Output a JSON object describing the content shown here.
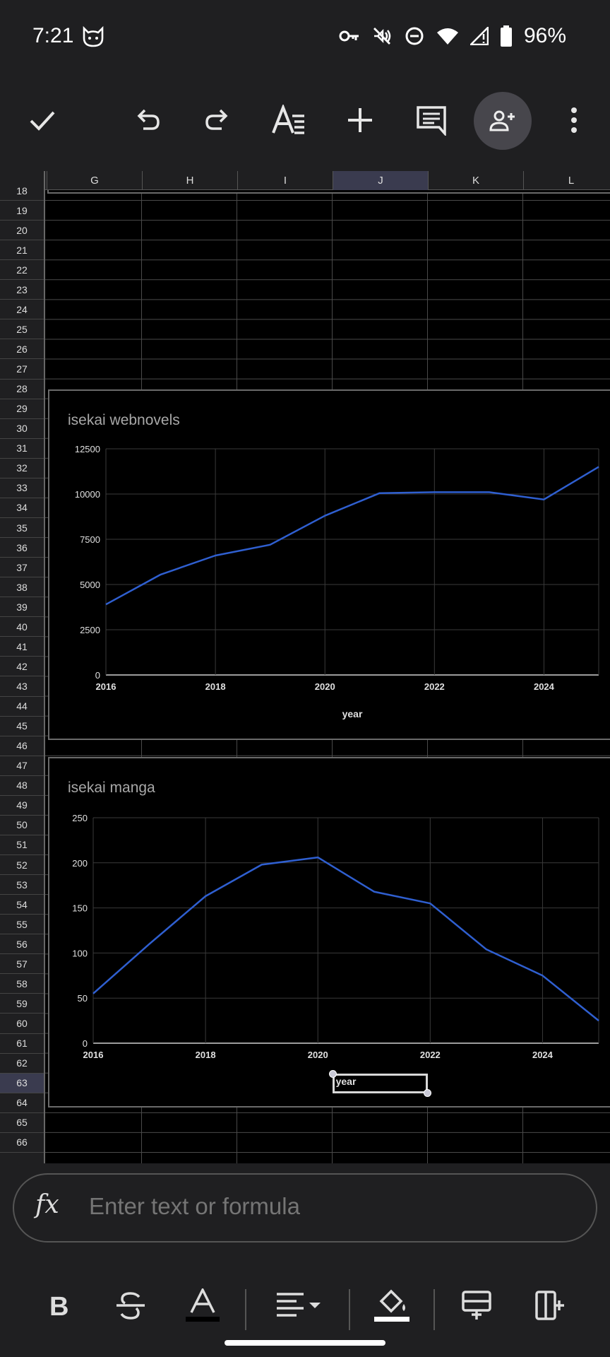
{
  "status_bar": {
    "time": "7:21",
    "battery": "96%",
    "icons": [
      "cat-icon",
      "vpn-key-icon",
      "vibrate-off-icon",
      "do-not-disturb-icon",
      "wifi-icon",
      "signal-icon",
      "battery-icon"
    ]
  },
  "toolbar": {
    "buttons": [
      "check-icon",
      "undo-icon",
      "redo-icon",
      "text-format-icon",
      "add-icon",
      "comment-icon",
      "share-person-add-icon",
      "more-vert-icon"
    ]
  },
  "sheet": {
    "columns": [
      "G",
      "H",
      "I",
      "J",
      "K",
      "L"
    ],
    "selected_column": "J",
    "rows": [
      18,
      19,
      20,
      21,
      22,
      23,
      24,
      25,
      26,
      27,
      28,
      29,
      30,
      31,
      32,
      33,
      34,
      35,
      36,
      37,
      38,
      39,
      40,
      41,
      42,
      43,
      44,
      45,
      46,
      47,
      48,
      49,
      50,
      51,
      52,
      53,
      54,
      55,
      56,
      57,
      58,
      59,
      60,
      61,
      62,
      63,
      64,
      65,
      66
    ],
    "selected_row": 63,
    "selected_cell": "J63"
  },
  "chart_data": [
    {
      "type": "line",
      "title": "isekai webnovels",
      "xlabel": "year",
      "ylabel": "",
      "x": [
        2016,
        2017,
        2018,
        2019,
        2020,
        2021,
        2022,
        2023,
        2024,
        2025
      ],
      "series": [
        {
          "values": [
            3900,
            5550,
            6600,
            7200,
            8800,
            10050,
            10100,
            10100,
            9700,
            11500
          ],
          "color": "#2f5fd0"
        }
      ],
      "xlim": [
        2016,
        2025
      ],
      "ylim": [
        0,
        12500
      ],
      "xticks": [
        "2016",
        "2018",
        "2020",
        "2022",
        "2024"
      ],
      "yticks": [
        "0",
        "2500",
        "5000",
        "7500",
        "10000",
        "12500"
      ],
      "grid": true,
      "legend": "none"
    },
    {
      "type": "line",
      "title": "isekai manga",
      "xlabel": "year",
      "ylabel": "",
      "x": [
        2016,
        2017,
        2018,
        2019,
        2020,
        2021,
        2022,
        2023,
        2024,
        2025
      ],
      "series": [
        {
          "values": [
            55,
            110,
            163,
            198,
            206,
            168,
            155,
            104,
            75,
            25
          ],
          "color": "#2f5fd0"
        }
      ],
      "xlim": [
        2016,
        2025
      ],
      "ylim": [
        0,
        250
      ],
      "xticks": [
        "2016",
        "2018",
        "2020",
        "2022",
        "2024"
      ],
      "yticks": [
        "0",
        "50",
        "100",
        "150",
        "200",
        "250"
      ],
      "grid": true,
      "legend": "none"
    }
  ],
  "formula_bar": {
    "icon": "fx-icon",
    "placeholder": "Enter text or formula"
  },
  "format_bar": {
    "buttons": [
      "bold-icon",
      "strikethrough-icon",
      "text-color-icon",
      "align-icon",
      "fill-color-icon",
      "insert-row-icon",
      "insert-column-icon"
    ]
  }
}
